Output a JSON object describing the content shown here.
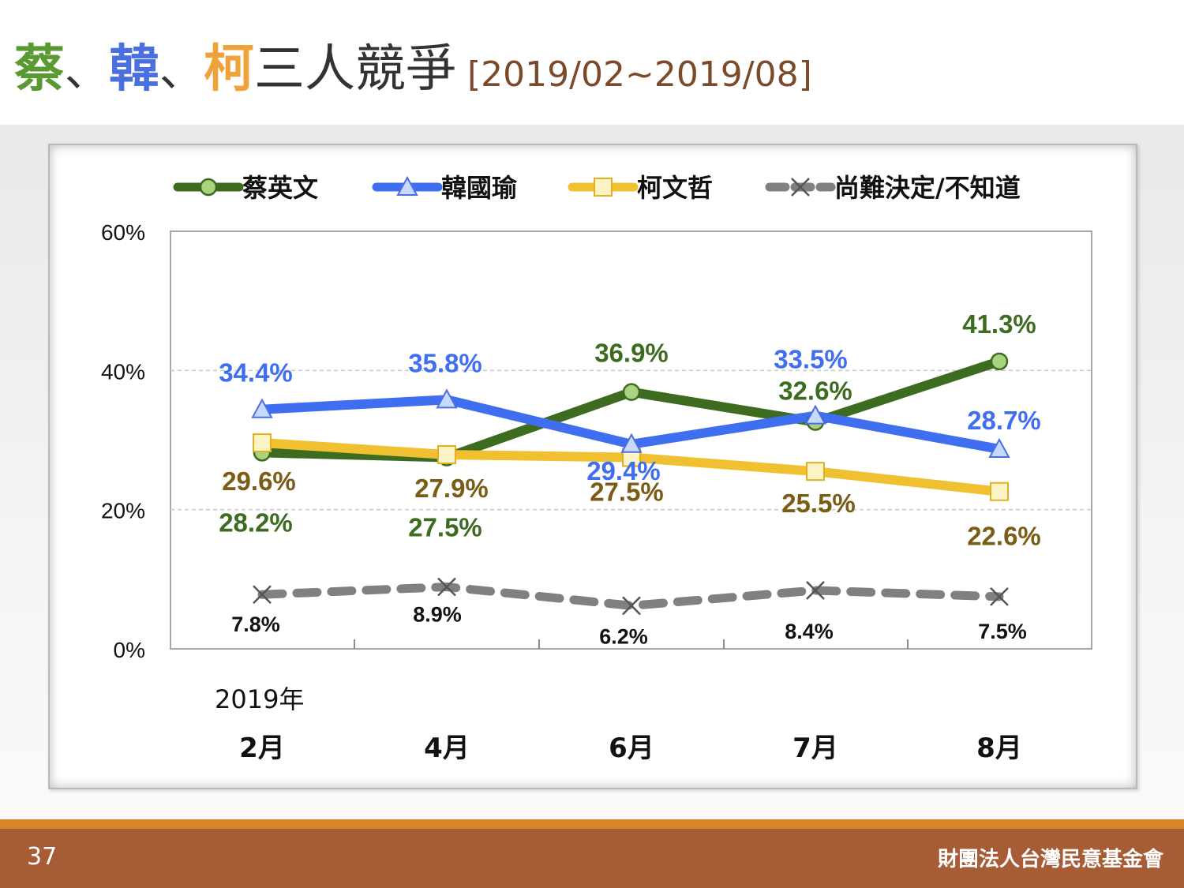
{
  "title": {
    "name1": "蔡",
    "sep1": "、",
    "name2": "韓",
    "sep2": "、",
    "name3": "柯",
    "rest": "三人競爭",
    "range": "[2019/02~2019/08]",
    "color1": "#5a9a32",
    "color2": "#4a6fe0",
    "color3": "#f0a23a"
  },
  "chart_data": {
    "type": "line",
    "year_label": "2019年",
    "categories": [
      "2月",
      "4月",
      "6月",
      "7月",
      "8月"
    ],
    "ylim": [
      0,
      60
    ],
    "yticks": [
      "0%",
      "20%",
      "40%",
      "60%"
    ],
    "grid": "horizontal dashed",
    "legend_position": "top",
    "series": [
      {
        "name": "蔡英文",
        "values": [
          28.2,
          27.5,
          36.9,
          32.6,
          41.3
        ],
        "labels": [
          "28.2%",
          "27.5%",
          "36.9%",
          "32.6%",
          "41.3%"
        ],
        "color": "#3d6b1f",
        "marker_color": "#a9d37e",
        "marker": "circle",
        "dash": false
      },
      {
        "name": "韓國瑜",
        "values": [
          34.4,
          35.8,
          29.4,
          33.5,
          28.7
        ],
        "labels": [
          "34.4%",
          "35.8%",
          "29.4%",
          "33.5%",
          "28.7%"
        ],
        "color": "#3f6ff0",
        "marker_color": "#c8d8ff",
        "marker": "triangle",
        "dash": false
      },
      {
        "name": "柯文哲",
        "values": [
          29.6,
          27.9,
          27.5,
          25.5,
          22.6
        ],
        "labels": [
          "29.6%",
          "27.9%",
          "27.5%",
          "25.5%",
          "22.6%"
        ],
        "color": "#f0c030",
        "marker_color": "#fbf3c4",
        "marker": "square",
        "dash": false
      },
      {
        "name": "尚難決定/不知道",
        "values": [
          7.8,
          8.9,
          6.2,
          8.4,
          7.5
        ],
        "labels": [
          "7.8%",
          "8.9%",
          "6.2%",
          "8.4%",
          "7.5%"
        ],
        "color": "#808080",
        "marker_color": "#555555",
        "marker": "x",
        "dash": true
      }
    ],
    "label_colors": [
      "#3d6b1f",
      "#3f6ff0",
      "#7a5c14",
      "#111111"
    ]
  },
  "footer": {
    "page": "37",
    "org": "財團法人台灣民意基金會"
  }
}
